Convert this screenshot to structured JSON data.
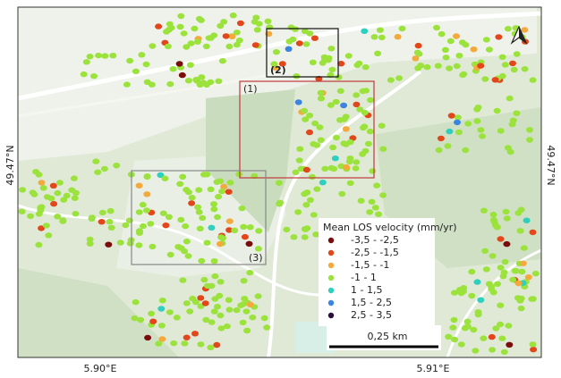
{
  "map": {
    "lat_labels": [
      "49.47°N",
      "49.47°N"
    ],
    "lon_labels": [
      "5.90°E",
      "5.91°E"
    ],
    "legend": {
      "title": "Mean LOS velocity (mm/yr)",
      "items": [
        {
          "label": "-3,5 - -2,5",
          "color": "#7a0c0c"
        },
        {
          "label": "-2,5 - -1,5",
          "color": "#e2461b"
        },
        {
          "label": "-1,5 - -1",
          "color": "#f3a93b"
        },
        {
          "label": "-1 - 1",
          "color": "#9be33c"
        },
        {
          "label": "1 - 1,5",
          "color": "#2fcfbf"
        },
        {
          "label": "1,5 - 2,5",
          "color": "#3b84df"
        },
        {
          "label": "2,5 - 3,5",
          "color": "#2b0e3a"
        }
      ]
    },
    "boxes": [
      {
        "label": "(1)",
        "color": "#c0393b"
      },
      {
        "label": "(2)",
        "color": "#111111"
      },
      {
        "label": "(3)",
        "color": "#888888"
      }
    ],
    "scale_bar": "0,25 km"
  }
}
